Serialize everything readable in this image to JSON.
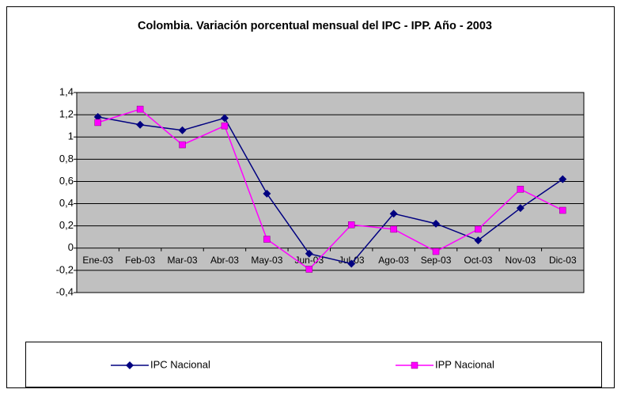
{
  "chart_data": {
    "type": "line",
    "title": "Colombia. Variación porcentual mensual del IPC - IPP. Año - 2003",
    "categories": [
      "Ene-03",
      "Feb-03",
      "Mar-03",
      "Abr-03",
      "May-03",
      "Jun-03",
      "Jul-03",
      "Ago-03",
      "Sep-03",
      "Oct-03",
      "Nov-03",
      "Dic-03"
    ],
    "series": [
      {
        "name": "IPC Nacional",
        "color": "#000080",
        "marker": "diamond",
        "values": [
          1.18,
          1.11,
          1.06,
          1.17,
          0.49,
          -0.05,
          -0.14,
          0.31,
          0.22,
          0.07,
          0.36,
          0.62
        ]
      },
      {
        "name": "IPP Nacional",
        "color": "#ff00ff",
        "marker": "square",
        "values": [
          1.13,
          1.25,
          0.93,
          1.1,
          0.08,
          -0.19,
          0.21,
          0.17,
          -0.03,
          0.17,
          0.53,
          0.34
        ]
      }
    ],
    "ylim": [
      -0.4,
      1.4
    ],
    "yticks": [
      {
        "value": -0.4,
        "label": "-0,4"
      },
      {
        "value": -0.2,
        "label": "-0,2"
      },
      0,
      {
        "value": 0.2,
        "label": "0,2"
      },
      {
        "value": 0.4,
        "label": "0,4"
      },
      {
        "value": 0.6,
        "label": "0,6"
      },
      {
        "value": 0.8,
        "label": "0,8"
      },
      1,
      {
        "value": 1.2,
        "label": "1,2"
      },
      {
        "value": 1.4,
        "label": "1,4"
      }
    ],
    "grid": true,
    "legend": "bottom",
    "plot_background": "#c0c0c0"
  }
}
